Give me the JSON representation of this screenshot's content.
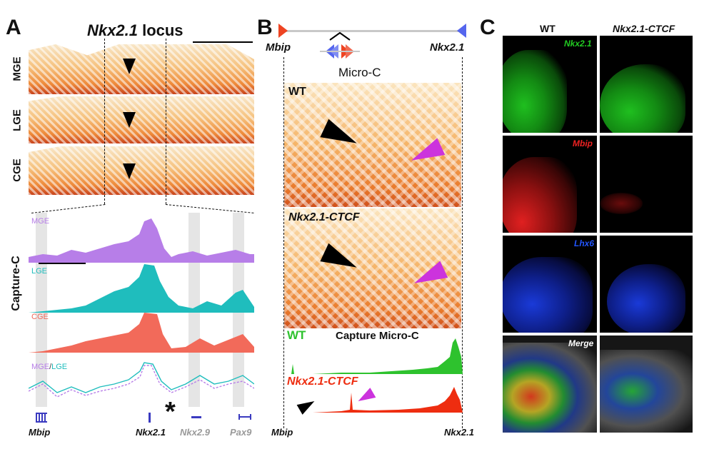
{
  "panels": {
    "a": {
      "letter": "A",
      "title_gene": "Nkx2.1",
      "title_rest": "locus",
      "heatmap_rows": [
        "MGE",
        "LGE",
        "CGE"
      ],
      "capture_label": "Capture-C",
      "tracks": [
        {
          "name": "MGE",
          "color": "#b77ee8"
        },
        {
          "name": "LGE",
          "color": "#1fbdbd"
        },
        {
          "name": "CGE",
          "color": "#f26a5a"
        }
      ],
      "overlay_label_1": "MGE",
      "overlay_sep": "/",
      "overlay_label_2": "LGE",
      "genes": [
        "Mbip",
        "Nkx2.1",
        "Nkx2.9",
        "Pax9"
      ],
      "asterisk": "*"
    },
    "b": {
      "letter": "B",
      "gene_left": "Mbip",
      "gene_right": "Nkx2.1",
      "method": "Micro-C",
      "maps": [
        "WT",
        "Nkx2.1-CTCF"
      ],
      "capture_title": "Capture Micro-C",
      "capture_tracks": [
        {
          "name": "WT",
          "color": "#2ec22e"
        },
        {
          "name": "Nkx2.1-CTCF",
          "color": "#ee2d10"
        }
      ],
      "bottom_left": "Mbip",
      "bottom_right": "Nkx2.1"
    },
    "c": {
      "letter": "C",
      "columns": [
        "WT",
        "Nkx2.1-CTCF"
      ],
      "rows": [
        {
          "label": "Nkx2.1",
          "color": "#22cc22"
        },
        {
          "label": "Mbip",
          "color": "#ee2222"
        },
        {
          "label": "Lhx6",
          "color": "#2255ff"
        },
        {
          "label": "Merge",
          "color": "#ffffff"
        }
      ]
    }
  }
}
